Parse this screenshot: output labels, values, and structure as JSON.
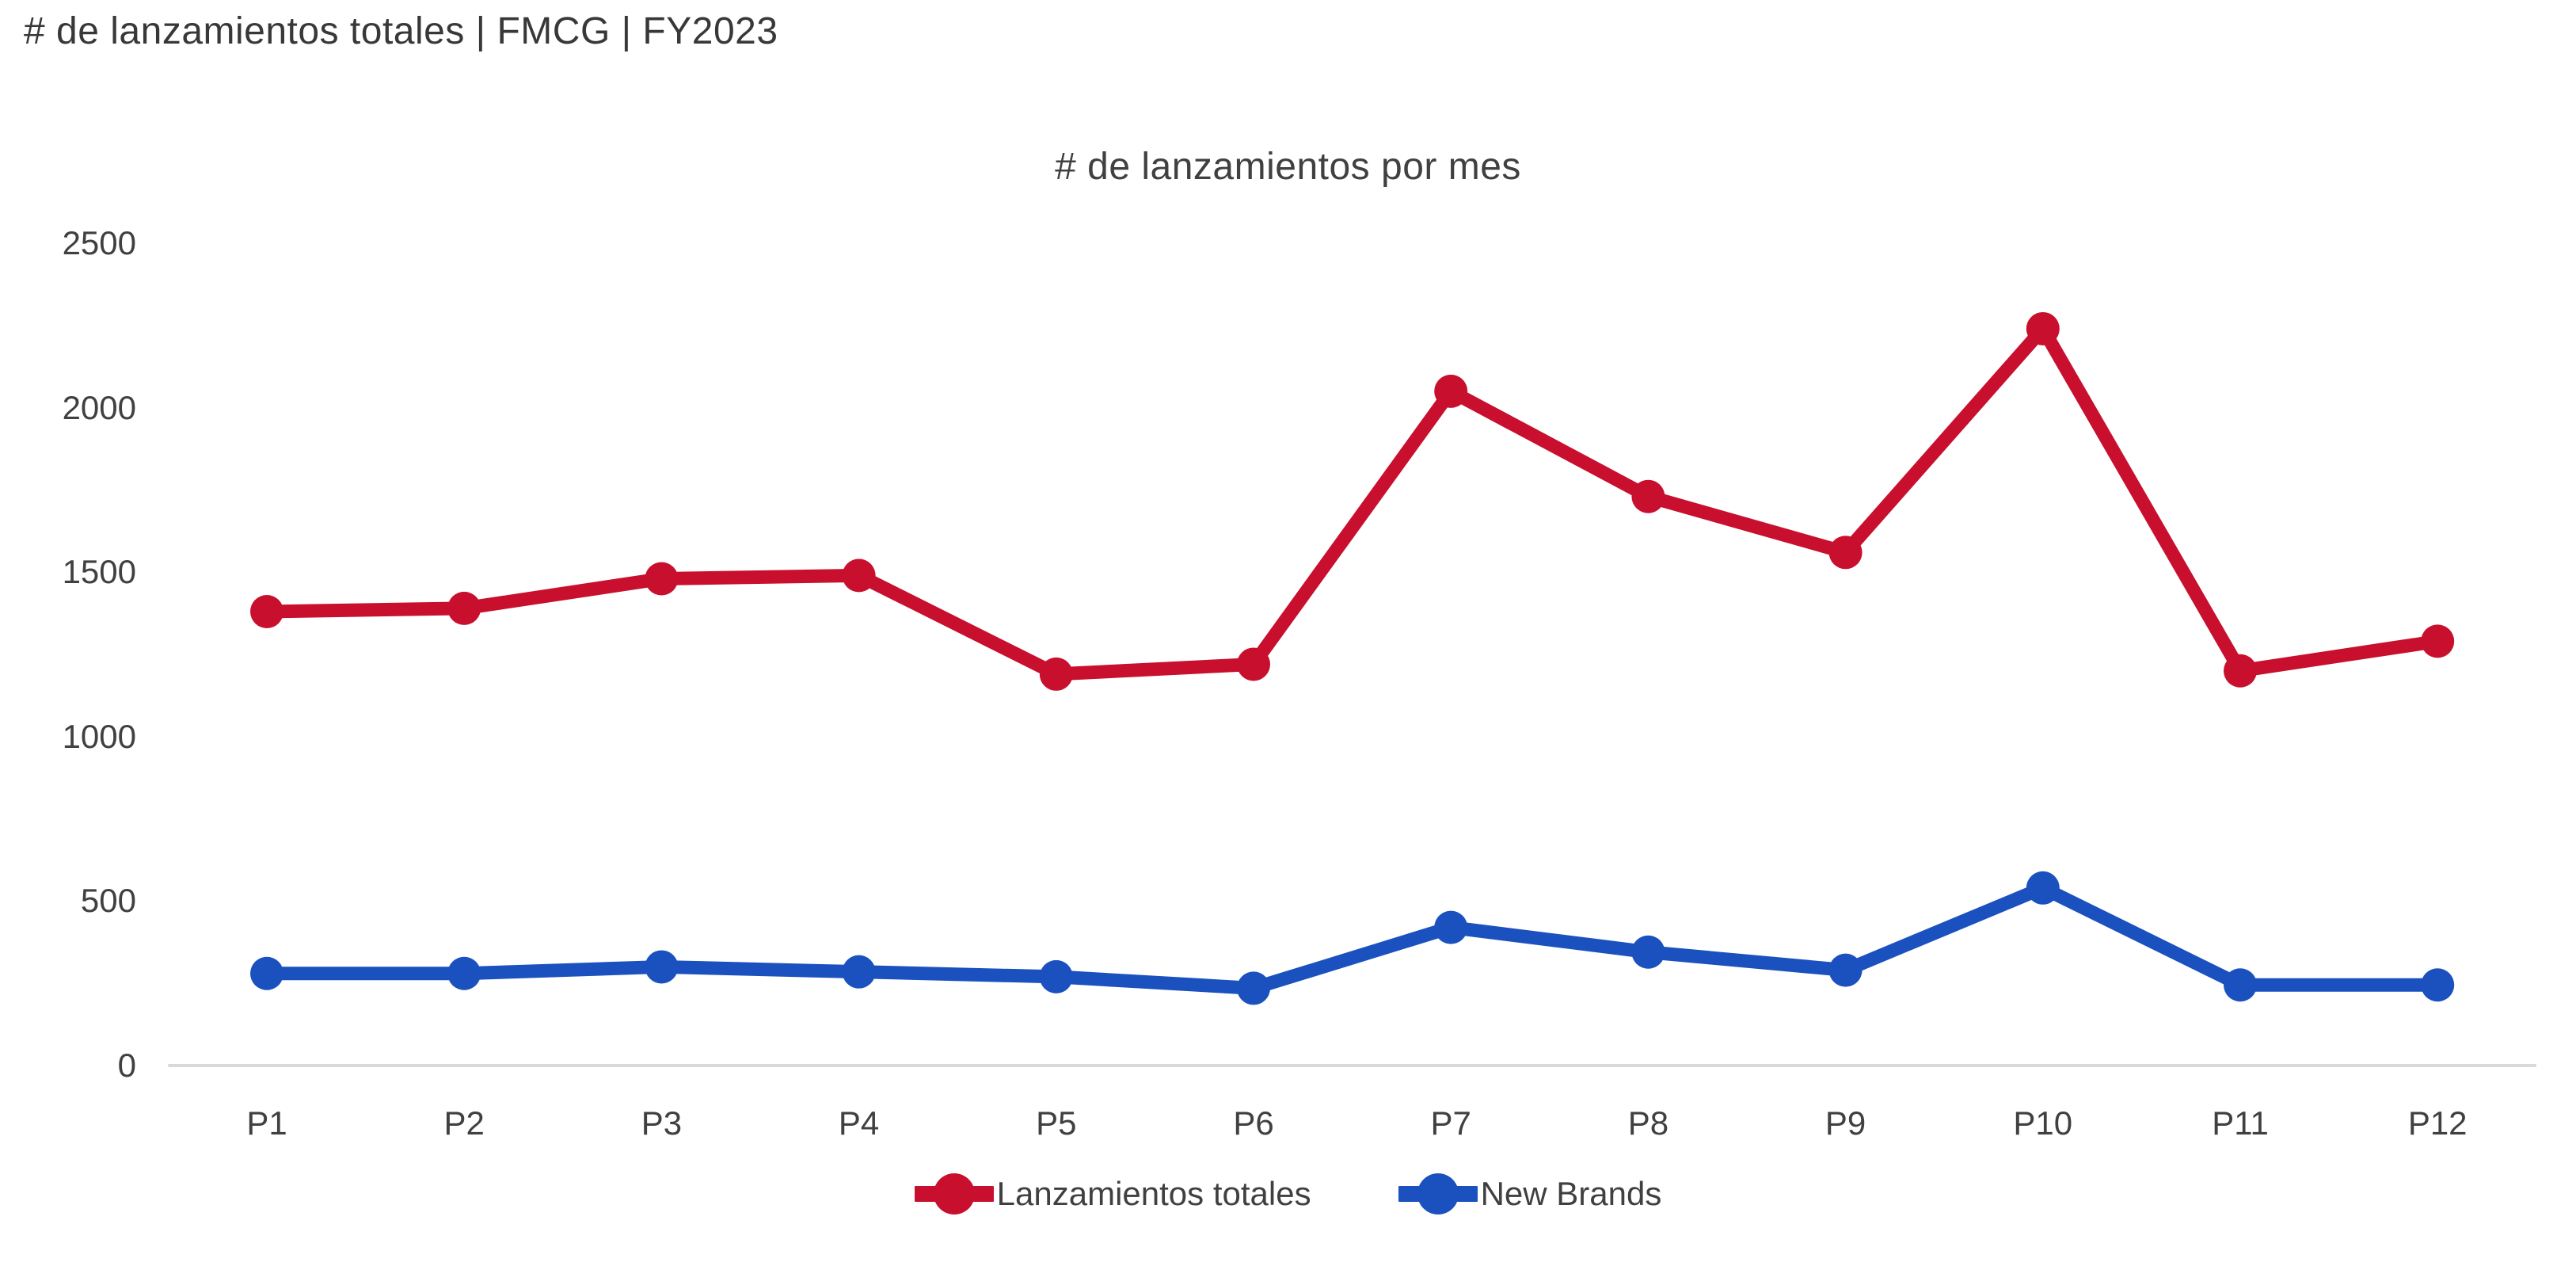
{
  "page": {
    "title": "# de lanzamientos totales | FMCG | FY2023"
  },
  "chart_data": {
    "type": "line",
    "title": "# de lanzamientos por mes",
    "categories": [
      "P1",
      "P2",
      "P3",
      "P4",
      "P5",
      "P6",
      "P7",
      "P8",
      "P9",
      "P10",
      "P11",
      "P12"
    ],
    "series": [
      {
        "name": "Lanzamientos totales",
        "color": "#C8102E",
        "values": [
          1380,
          1390,
          1480,
          1490,
          1190,
          1220,
          2050,
          1730,
          1560,
          2240,
          1200,
          1290
        ]
      },
      {
        "name": "New Brands",
        "color": "#1A51BE",
        "values": [
          280,
          280,
          300,
          285,
          270,
          235,
          420,
          345,
          290,
          540,
          245,
          245
        ]
      }
    ],
    "xlabel": "",
    "ylabel": "",
    "ylim": [
      0,
      2500
    ],
    "y_ticks": [
      0,
      500,
      1000,
      1500,
      2000,
      2500
    ],
    "grid": false,
    "legend_position": "bottom",
    "axis_line_color": "#D9D9D9",
    "text_color": "#404040",
    "background_color": "#FFFFFF"
  }
}
